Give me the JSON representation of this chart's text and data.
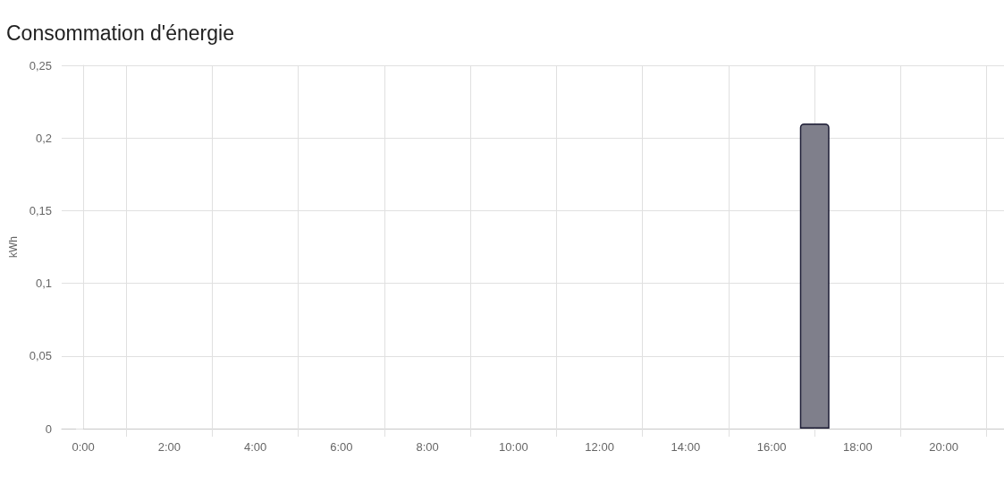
{
  "chart_data": {
    "type": "bar",
    "title": "Consommation d'énergie",
    "ylabel": "kWh",
    "x": [
      17
    ],
    "values": [
      0.21
    ],
    "color": "#7f7f8b",
    "xlim": [
      -0.5,
      21.4
    ],
    "xticks": [
      {
        "value": 0,
        "label": "0:00"
      },
      {
        "value": 1,
        "label": null
      },
      {
        "value": 2,
        "label": "2:00"
      },
      {
        "value": 3,
        "label": null
      },
      {
        "value": 4,
        "label": "4:00"
      },
      {
        "value": 5,
        "label": null
      },
      {
        "value": 6,
        "label": "6:00"
      },
      {
        "value": 7,
        "label": null
      },
      {
        "value": 8,
        "label": "8:00"
      },
      {
        "value": 9,
        "label": null
      },
      {
        "value": 10,
        "label": "10:00"
      },
      {
        "value": 11,
        "label": null
      },
      {
        "value": 12,
        "label": "12:00"
      },
      {
        "value": 13,
        "label": null
      },
      {
        "value": 14,
        "label": "14:00"
      },
      {
        "value": 15,
        "label": null
      },
      {
        "value": 16,
        "label": "16:00"
      },
      {
        "value": 17,
        "label": null
      },
      {
        "value": 18,
        "label": "18:00"
      },
      {
        "value": 19,
        "label": null
      },
      {
        "value": 20,
        "label": "20:00"
      },
      {
        "value": 21,
        "label": null
      }
    ],
    "ylim": [
      0,
      0.25
    ],
    "yticks": [
      0,
      {
        "value": 0.05,
        "label": "0,05"
      },
      {
        "value": 0.1,
        "label": "0,1"
      },
      {
        "value": 0.15,
        "label": "0,15"
      },
      {
        "value": 0.2,
        "label": "0,2"
      },
      {
        "value": 0.25,
        "label": "0,25"
      }
    ],
    "grid": true
  }
}
